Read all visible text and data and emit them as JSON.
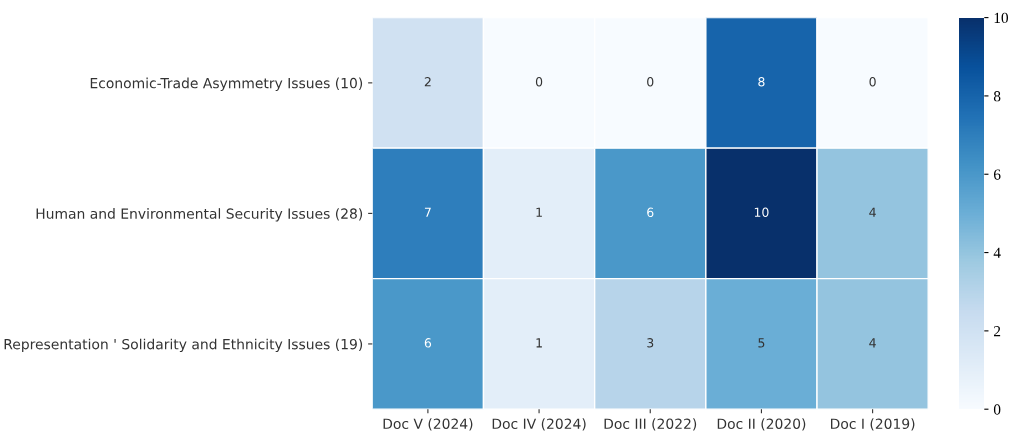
{
  "chart_data": {
    "type": "heatmap",
    "categories": [
      "Doc V (2024)",
      "Doc IV (2024)",
      "Doc III (2022)",
      "Doc II (2020)",
      "Doc I (2019)"
    ],
    "y_categories": [
      "Economic-Trade Asymmetry Issues (10)",
      "Human and Environmental Security Issues (28)",
      "Representation ' Solidarity and Ethnicity Issues (19)"
    ],
    "cells": [
      [
        2,
        0,
        0,
        8,
        0
      ],
      [
        7,
        1,
        6,
        10,
        4
      ],
      [
        6,
        1,
        3,
        5,
        4
      ]
    ],
    "clim": [
      0,
      10
    ],
    "cticks": [
      0,
      2,
      4,
      6,
      8,
      10
    ],
    "data_labels": true
  }
}
